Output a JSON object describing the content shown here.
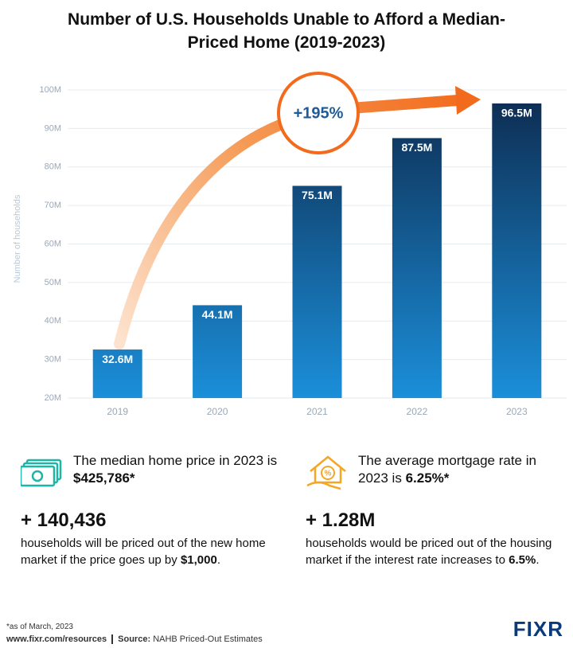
{
  "chart_data": {
    "type": "bar",
    "title": "Number of U.S. Households Unable to Afford a Median-Priced Home (2019-2023)",
    "y_label": "Number of households",
    "categories": [
      "2019",
      "2020",
      "2021",
      "2022",
      "2023"
    ],
    "values": [
      32.6,
      44.1,
      75.1,
      87.5,
      96.5
    ],
    "value_labels": [
      "32.6M",
      "44.1M",
      "75.1M",
      "87.5M",
      "96.5M"
    ],
    "ylim": [
      20,
      100
    ],
    "yticks": [
      {
        "value": 20,
        "label": "20M"
      },
      {
        "value": 30,
        "label": "30M"
      },
      {
        "value": 40,
        "label": "40M"
      },
      {
        "value": 50,
        "label": "50M"
      },
      {
        "value": 60,
        "label": "60M"
      },
      {
        "value": 70,
        "label": "70M"
      },
      {
        "value": 80,
        "label": "80M"
      },
      {
        "value": 90,
        "label": "90M"
      },
      {
        "value": 100,
        "label": "100M"
      }
    ],
    "grid": true,
    "colors": [
      "#0d2a4e",
      "#1b8fda"
    ],
    "annotation": "+195%"
  },
  "info": [
    {
      "lead": "The median home price in 2023 is",
      "highlight": "$425,786*",
      "stat": "+ 140,436",
      "body": "households will be priced out of the new home market if the price goes up by",
      "body_highlight": "$1,000",
      "body_end": "."
    },
    {
      "lead": "The average mortgage rate in 2023 is",
      "highlight": "6.25%*",
      "stat": "+ 1.28M",
      "body": "households would be priced out of the housing market if the interest rate increases to",
      "body_highlight": "6.5%",
      "body_end": "."
    }
  ],
  "footer": {
    "note": "*as of March, 2023",
    "url": "www.fixr.com/resources",
    "source_label": "Source:",
    "source": "NAHB Priced-Out Estimates",
    "logo": "FIXR"
  }
}
